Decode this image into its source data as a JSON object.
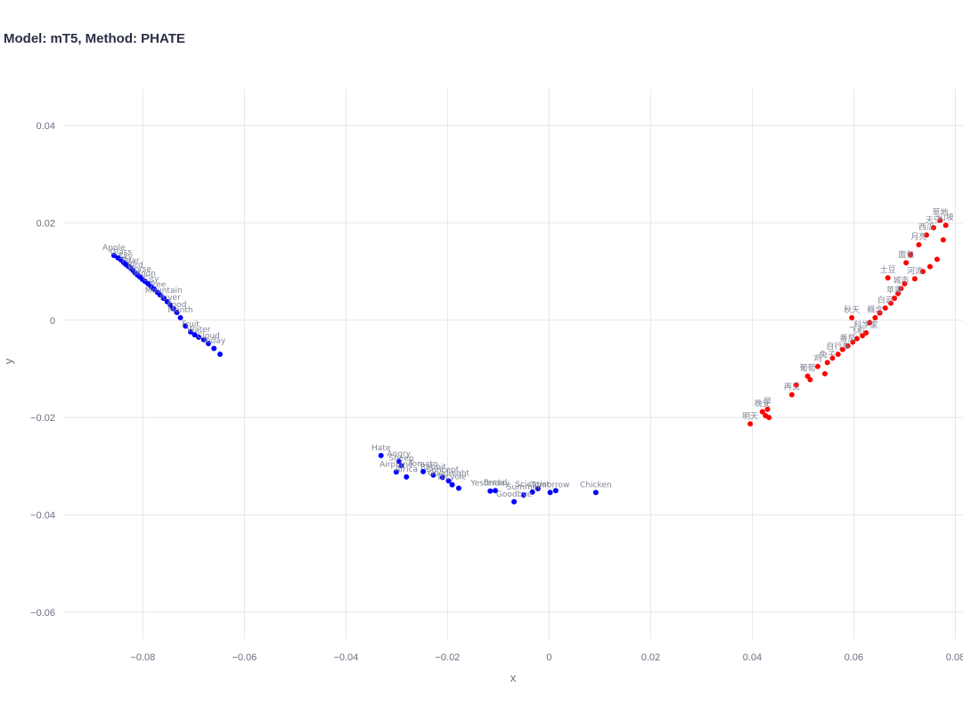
{
  "title": "Model: mT5, Method: PHATE",
  "chart_data": {
    "type": "scatter",
    "title": "Model: mT5, Method: PHATE",
    "xlabel": "x",
    "ylabel": "y",
    "xlim": [
      -0.0955,
      0.0815
    ],
    "ylim": [
      -0.0655,
      0.0475
    ],
    "xticks": [
      -0.08,
      -0.06,
      -0.04,
      -0.02,
      0,
      0.02,
      0.04,
      0.06,
      0.08
    ],
    "xtick_labels": [
      "−0.08",
      "−0.06",
      "−0.04",
      "−0.02",
      "0",
      "0.02",
      "0.04",
      "0.06",
      "0.08"
    ],
    "yticks": [
      -0.06,
      -0.04,
      -0.02,
      0,
      0.02,
      0.04
    ],
    "ytick_labels": [
      "−0.06",
      "−0.04",
      "−0.02",
      "0",
      "0.02",
      "0.04"
    ],
    "grid": true,
    "legend": "none",
    "colors": {
      "english": "#0000ff",
      "chinese": "#ff0000",
      "label": "#7f8494",
      "grid": "#e6e6e6"
    },
    "series": [
      {
        "color": "#0000ff",
        "points": [
          {
            "x": -0.0857,
            "y": 0.0133,
            "label": "Apple"
          },
          {
            "x": -0.0849,
            "y": 0.0128,
            "label": ""
          },
          {
            "x": -0.0843,
            "y": 0.0124,
            "label": "Glass"
          },
          {
            "x": -0.0838,
            "y": 0.0119,
            "label": ""
          },
          {
            "x": -0.0834,
            "y": 0.0115,
            "label": "Sky"
          },
          {
            "x": -0.0829,
            "y": 0.0111,
            "label": ""
          },
          {
            "x": -0.0824,
            "y": 0.0107,
            "label": "Pear"
          },
          {
            "x": -0.0819,
            "y": 0.0102,
            "label": ""
          },
          {
            "x": -0.0815,
            "y": 0.0097,
            "label": "Bird"
          },
          {
            "x": -0.0811,
            "y": 0.0093,
            "label": ""
          },
          {
            "x": -0.0806,
            "y": 0.0089,
            "label": "Horse"
          },
          {
            "x": -0.0801,
            "y": 0.0084,
            "label": ""
          },
          {
            "x": -0.0796,
            "y": 0.008,
            "label": "Moon"
          },
          {
            "x": -0.079,
            "y": 0.0075,
            "label": ""
          },
          {
            "x": -0.0784,
            "y": 0.0069,
            "label": "City"
          },
          {
            "x": -0.0778,
            "y": 0.0064,
            "label": ""
          },
          {
            "x": -0.0771,
            "y": 0.0057,
            "label": "Tree"
          },
          {
            "x": -0.0766,
            "y": 0.0052,
            "label": ""
          },
          {
            "x": -0.0759,
            "y": 0.0045,
            "label": "Mountain"
          },
          {
            "x": -0.0752,
            "y": 0.0038,
            "label": ""
          },
          {
            "x": -0.0746,
            "y": 0.0031,
            "label": "River"
          },
          {
            "x": -0.074,
            "y": 0.0024,
            "label": ""
          },
          {
            "x": -0.0733,
            "y": 0.0016,
            "label": "Food"
          },
          {
            "x": -0.0726,
            "y": 0.0005,
            "label": "Month"
          },
          {
            "x": -0.0716,
            "y": -0.0012,
            "label": ""
          },
          {
            "x": -0.0706,
            "y": -0.0024,
            "label": "Fruit"
          },
          {
            "x": -0.0698,
            "y": -0.003,
            "label": ""
          },
          {
            "x": -0.069,
            "y": -0.0035,
            "label": "Water"
          },
          {
            "x": -0.068,
            "y": -0.004,
            "label": ""
          },
          {
            "x": -0.0671,
            "y": -0.0048,
            "label": "Cloud"
          },
          {
            "x": -0.066,
            "y": -0.0058,
            "label": "Today"
          },
          {
            "x": -0.0648,
            "y": -0.007,
            "label": ""
          },
          {
            "x": -0.0331,
            "y": -0.0278,
            "label": "Hate"
          },
          {
            "x": -0.0296,
            "y": -0.029,
            "label": "Angry"
          },
          {
            "x": -0.0291,
            "y": -0.0299,
            "label": "Sheep"
          },
          {
            "x": -0.0281,
            "y": -0.0322,
            "label": "Africa"
          },
          {
            "x": -0.0301,
            "y": -0.0312,
            "label": "Airplane"
          },
          {
            "x": -0.0248,
            "y": -0.0311,
            "label": "Tomato"
          },
          {
            "x": -0.0228,
            "y": -0.0318,
            "label": "Rabbit"
          },
          {
            "x": -0.021,
            "y": -0.0323,
            "label": "Concept"
          },
          {
            "x": -0.0198,
            "y": -0.033,
            "label": "Goodnight"
          },
          {
            "x": -0.0191,
            "y": -0.0338,
            "label": "Bicycle"
          },
          {
            "x": -0.0178,
            "y": -0.0345,
            "label": ""
          },
          {
            "x": -0.0116,
            "y": -0.0351,
            "label": "Yesterday"
          },
          {
            "x": -0.0106,
            "y": -0.035,
            "label": "Bread"
          },
          {
            "x": -0.0069,
            "y": -0.0373,
            "label": "Goodbye"
          },
          {
            "x": -0.005,
            "y": -0.0359,
            "label": "Summer"
          },
          {
            "x": -0.0033,
            "y": -0.0353,
            "label": "Scientist"
          },
          {
            "x": -0.0022,
            "y": -0.0346,
            "label": ""
          },
          {
            "x": 0.0002,
            "y": -0.0354,
            "label": "Tomorrow"
          },
          {
            "x": 0.0013,
            "y": -0.035,
            "label": ""
          },
          {
            "x": 0.0092,
            "y": -0.0354,
            "label": "Chicken"
          }
        ]
      },
      {
        "color": "#ff0000",
        "points": [
          {
            "x": 0.0396,
            "y": -0.0213,
            "label": "明天"
          },
          {
            "x": 0.042,
            "y": -0.0188,
            "label": "晚安"
          },
          {
            "x": 0.0426,
            "y": -0.0196,
            "label": ""
          },
          {
            "x": 0.043,
            "y": -0.0183,
            "label": "早"
          },
          {
            "x": 0.0433,
            "y": -0.02,
            "label": ""
          },
          {
            "x": 0.0478,
            "y": -0.0153,
            "label": "再见"
          },
          {
            "x": 0.0487,
            "y": -0.0133,
            "label": ""
          },
          {
            "x": 0.0509,
            "y": -0.0115,
            "label": "葡萄"
          },
          {
            "x": 0.0514,
            "y": -0.0122,
            "label": ""
          },
          {
            "x": 0.0529,
            "y": -0.0095,
            "label": "鸡"
          },
          {
            "x": 0.0543,
            "y": -0.011,
            "label": ""
          },
          {
            "x": 0.0548,
            "y": -0.0087,
            "label": "兔子"
          },
          {
            "x": 0.0558,
            "y": -0.0078,
            "label": ""
          },
          {
            "x": 0.0569,
            "y": -0.007,
            "label": "自行车"
          },
          {
            "x": 0.0578,
            "y": -0.006,
            "label": ""
          },
          {
            "x": 0.0588,
            "y": -0.0053,
            "label": "番茄"
          },
          {
            "x": 0.0598,
            "y": -0.0045,
            "label": ""
          },
          {
            "x": 0.0606,
            "y": -0.0038,
            "label": "飞机"
          },
          {
            "x": 0.0617,
            "y": -0.0032,
            "label": ""
          },
          {
            "x": 0.0624,
            "y": -0.0026,
            "label": "科学家"
          },
          {
            "x": 0.0596,
            "y": 0.0005,
            "label": "秋天"
          },
          {
            "x": 0.0631,
            "y": -0.0005,
            "label": ""
          },
          {
            "x": 0.0642,
            "y": 0.0005,
            "label": "概念"
          },
          {
            "x": 0.0651,
            "y": 0.0015,
            "label": ""
          },
          {
            "x": 0.0662,
            "y": 0.0025,
            "label": "白云"
          },
          {
            "x": 0.0667,
            "y": 0.0087,
            "label": "土豆"
          },
          {
            "x": 0.0673,
            "y": 0.0035,
            "label": ""
          },
          {
            "x": 0.068,
            "y": 0.0045,
            "label": "苹果"
          },
          {
            "x": 0.0687,
            "y": 0.0055,
            "label": ""
          },
          {
            "x": 0.0693,
            "y": 0.0065,
            "label": "城市"
          },
          {
            "x": 0.07,
            "y": 0.0075,
            "label": ""
          },
          {
            "x": 0.0703,
            "y": 0.0118,
            "label": "面包"
          },
          {
            "x": 0.0712,
            "y": 0.0135,
            "label": ""
          },
          {
            "x": 0.072,
            "y": 0.0085,
            "label": "河流"
          },
          {
            "x": 0.0728,
            "y": 0.0155,
            "label": "月亮"
          },
          {
            "x": 0.0736,
            "y": 0.01,
            "label": ""
          },
          {
            "x": 0.0743,
            "y": 0.0175,
            "label": "西瓜"
          },
          {
            "x": 0.075,
            "y": 0.011,
            "label": ""
          },
          {
            "x": 0.0757,
            "y": 0.019,
            "label": "天空"
          },
          {
            "x": 0.0764,
            "y": 0.0125,
            "label": ""
          },
          {
            "x": 0.077,
            "y": 0.0205,
            "label": "草地"
          },
          {
            "x": 0.0776,
            "y": 0.0165,
            "label": ""
          },
          {
            "x": 0.0781,
            "y": 0.0195,
            "label": "山坡"
          }
        ]
      }
    ]
  }
}
